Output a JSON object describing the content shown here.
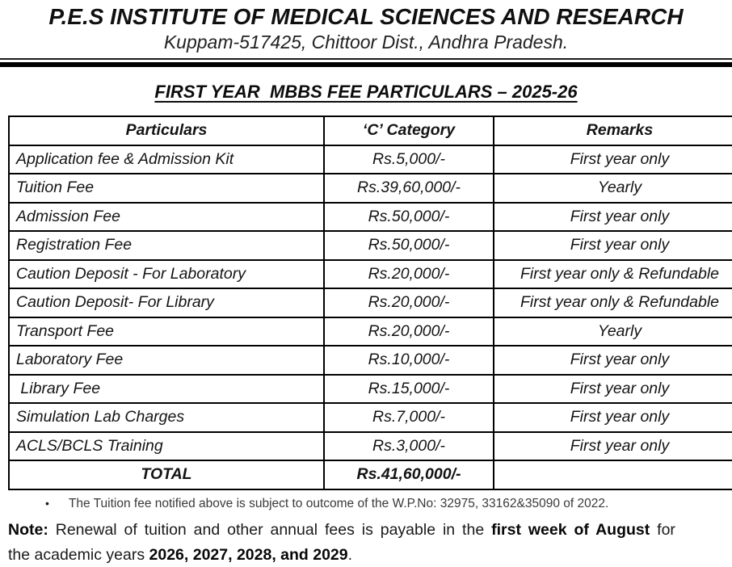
{
  "header": {
    "title": "P.E.S INSTITUTE OF MEDICAL SCIENCES AND RESEARCH",
    "subtitle": "Kuppam-517425, Chittoor Dist., Andhra Pradesh."
  },
  "section_heading": "FIRST YEAR  MBBS FEE PARTICULARS – 2025-26",
  "fee_table": {
    "columns": [
      "Particulars",
      "‘C’ Category",
      "Remarks"
    ],
    "rows": [
      {
        "particulars": "Application fee & Admission Kit",
        "amount": "Rs.5,000/-",
        "remarks": "First year only"
      },
      {
        "particulars": "Tuition Fee",
        "amount": "Rs.39,60,000/-",
        "remarks": "Yearly"
      },
      {
        "particulars": "Admission Fee",
        "amount": "Rs.50,000/-",
        "remarks": "First year only"
      },
      {
        "particulars": "Registration Fee",
        "amount": "Rs.50,000/-",
        "remarks": "First year only"
      },
      {
        "particulars": "Caution Deposit - For Laboratory",
        "amount": "Rs.20,000/-",
        "remarks": "First year only & Refundable"
      },
      {
        "particulars": "Caution Deposit- For Library",
        "amount": "Rs.20,000/-",
        "remarks": "First year only & Refundable"
      },
      {
        "particulars": "Transport Fee",
        "amount": "Rs.20,000/-",
        "remarks": "Yearly"
      },
      {
        "particulars": "Laboratory Fee",
        "amount": "Rs.10,000/-",
        "remarks": "First year only"
      },
      {
        "particulars": " Library Fee",
        "amount": "Rs.15,000/-",
        "remarks": "First year only"
      },
      {
        "particulars": "Simulation Lab Charges",
        "amount": "Rs.7,000/-",
        "remarks": "First year only"
      },
      {
        "particulars": "ACLS/BCLS Training",
        "amount": "Rs.3,000/-",
        "remarks": "First year only"
      }
    ],
    "total": {
      "label": "TOTAL",
      "amount": "Rs.41,60,000/-",
      "remarks": ""
    }
  },
  "footnotes": {
    "bullet_glyph": "•",
    "bullet": "The Tuition fee notified above is subject to outcome of the W.P.No: 32975, 33162&35090 of 2022.",
    "note": {
      "bold_prefix": "Note:",
      "line1_a": " Renewal of tuition and other annual fees is payable in the ",
      "line1_bold": "first week of August",
      "line1_b": " for",
      "line2_a": "the academic years ",
      "line2_bold": "2026, 2027, 2028, and 2029",
      "line2_b": "."
    }
  },
  "colors": {
    "text": "#141414",
    "border": "#000000",
    "background": "#ffffff"
  }
}
